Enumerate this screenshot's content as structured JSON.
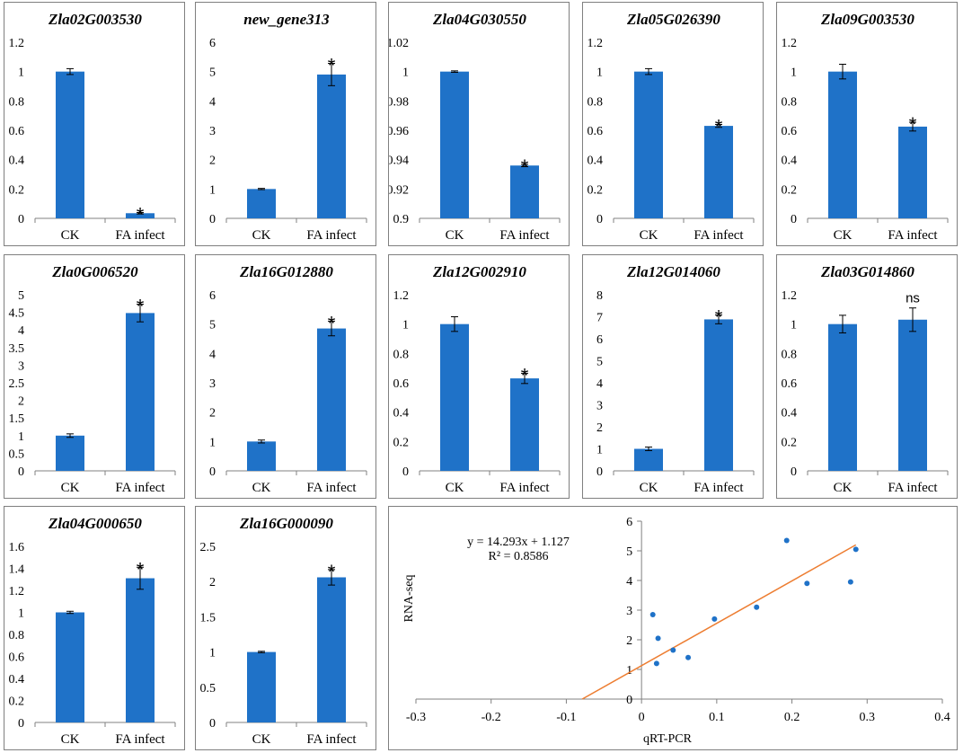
{
  "colors": {
    "bar": "#1F72C8",
    "point": "#1F72C8",
    "fit": "#ED7D31",
    "axis": "#808080",
    "grid": "#d9d9d9"
  },
  "chart_data": [
    {
      "type": "bar",
      "title": "Zla02G003530",
      "categories": [
        "CK",
        "FA infect"
      ],
      "values": [
        1.0,
        0.035
      ],
      "errors": [
        0.02,
        0.005
      ],
      "ylim": [
        0,
        1.2
      ],
      "yticks": [
        "0",
        "0.2",
        "0.4",
        "0.6",
        "0.8",
        "1",
        "1.2"
      ],
      "annotations": [
        "",
        "*"
      ]
    },
    {
      "type": "bar",
      "title": "new_gene313",
      "categories": [
        "CK",
        "FA infect"
      ],
      "values": [
        1.0,
        4.9
      ],
      "errors": [
        0.02,
        0.38
      ],
      "ylim": [
        0,
        6
      ],
      "yticks": [
        "0",
        "1",
        "2",
        "3",
        "4",
        "5",
        "6"
      ],
      "annotations": [
        "",
        "*"
      ]
    },
    {
      "type": "bar",
      "title": "Zla04G030550",
      "categories": [
        "CK",
        "FA infect"
      ],
      "values": [
        1.0,
        0.936
      ],
      "errors": [
        0.0005,
        0.0008
      ],
      "ylim": [
        0.9,
        1.02
      ],
      "yticks": [
        "0.9",
        "0.92",
        "0.94",
        "0.96",
        "0.98",
        "1",
        "1.02"
      ],
      "annotations": [
        "",
        "*"
      ]
    },
    {
      "type": "bar",
      "title": "Zla05G026390",
      "categories": [
        "CK",
        "FA infect"
      ],
      "values": [
        1.0,
        0.63
      ],
      "errors": [
        0.02,
        0.01
      ],
      "ylim": [
        0,
        1.2
      ],
      "yticks": [
        "0",
        "0.2",
        "0.4",
        "0.6",
        "0.8",
        "1",
        "1.2"
      ],
      "annotations": [
        "",
        "*"
      ]
    },
    {
      "type": "bar",
      "title": "Zla09G003530",
      "categories": [
        "CK",
        "FA infect"
      ],
      "values": [
        1.0,
        0.625
      ],
      "errors": [
        0.05,
        0.03
      ],
      "ylim": [
        0,
        1.2
      ],
      "yticks": [
        "0",
        "0.2",
        "0.4",
        "0.6",
        "0.8",
        "1",
        "1.2"
      ],
      "annotations": [
        "",
        "*"
      ]
    },
    {
      "type": "bar",
      "title": "Zla0G006520",
      "categories": [
        "CK",
        "FA infect"
      ],
      "values": [
        1.0,
        4.48
      ],
      "errors": [
        0.05,
        0.25
      ],
      "ylim": [
        0,
        5
      ],
      "yticks": [
        "0",
        "0.5",
        "1",
        "1.5",
        "2",
        "2.5",
        "3",
        "3.5",
        "4",
        "4.5",
        "5"
      ],
      "annotations": [
        "",
        "*"
      ]
    },
    {
      "type": "bar",
      "title": "Zla16G012880",
      "categories": [
        "CK",
        "FA infect"
      ],
      "values": [
        1.0,
        4.85
      ],
      "errors": [
        0.05,
        0.25
      ],
      "ylim": [
        0,
        6
      ],
      "yticks": [
        "0",
        "1",
        "2",
        "3",
        "4",
        "5",
        "6"
      ],
      "annotations": [
        "",
        "*"
      ]
    },
    {
      "type": "bar",
      "title": "Zla12G002910",
      "categories": [
        "CK",
        "FA infect"
      ],
      "values": [
        1.0,
        0.63
      ],
      "errors": [
        0.05,
        0.035
      ],
      "ylim": [
        0,
        1.2
      ],
      "yticks": [
        "0",
        "0.2",
        "0.4",
        "0.6",
        "0.8",
        "1",
        "1.2"
      ],
      "annotations": [
        "",
        "*"
      ]
    },
    {
      "type": "bar",
      "title": "Zla12G014060",
      "categories": [
        "CK",
        "FA infect"
      ],
      "values": [
        1.0,
        6.88
      ],
      "errors": [
        0.08,
        0.2
      ],
      "ylim": [
        0,
        8
      ],
      "yticks": [
        "0",
        "1",
        "2",
        "3",
        "4",
        "5",
        "6",
        "7",
        "8"
      ],
      "annotations": [
        "",
        "*"
      ]
    },
    {
      "type": "bar",
      "title": "Zla03G014860",
      "categories": [
        "CK",
        "FA infect"
      ],
      "values": [
        1.0,
        1.03
      ],
      "errors": [
        0.06,
        0.08
      ],
      "ylim": [
        0,
        1.2
      ],
      "yticks": [
        "0",
        "0.2",
        "0.4",
        "0.6",
        "0.8",
        "1",
        "1.2"
      ],
      "annotations": [
        "",
        "ns"
      ]
    },
    {
      "type": "bar",
      "title": "Zla04G000650",
      "categories": [
        "CK",
        "FA infect"
      ],
      "values": [
        1.0,
        1.31
      ],
      "errors": [
        0.01,
        0.1
      ],
      "ylim": [
        0,
        1.6
      ],
      "yticks": [
        "0",
        "0.2",
        "0.4",
        "0.6",
        "0.8",
        "1",
        "1.2",
        "1.4",
        "1.6"
      ],
      "annotations": [
        "",
        "*"
      ]
    },
    {
      "type": "bar",
      "title": "Zla16G000090",
      "categories": [
        "CK",
        "FA infect"
      ],
      "values": [
        1.0,
        2.06
      ],
      "errors": [
        0.01,
        0.11
      ],
      "ylim": [
        0,
        2.5
      ],
      "yticks": [
        "0",
        "0.5",
        "1",
        "1.5",
        "2",
        "2.5"
      ],
      "annotations": [
        "",
        "*"
      ]
    },
    {
      "type": "scatter",
      "title": "",
      "xlabel": "qRT-PCR",
      "ylabel": "RNA-seq",
      "xlim": [
        -0.3,
        0.4
      ],
      "ylim": [
        0,
        6
      ],
      "xticks": [
        "-0.3",
        "-0.2",
        "-0.1",
        "0",
        "0.1",
        "0.2",
        "0.3",
        "0.4"
      ],
      "yticks": [
        "0",
        "1",
        "2",
        "3",
        "4",
        "5",
        "6"
      ],
      "x": [
        0.015,
        0.02,
        0.022,
        0.042,
        0.062,
        0.097,
        0.153,
        0.193,
        0.22,
        0.278,
        0.285
      ],
      "y": [
        2.85,
        1.2,
        2.05,
        1.65,
        1.4,
        2.7,
        3.1,
        5.35,
        3.9,
        3.95,
        5.05
      ],
      "fit": {
        "slope": 14.293,
        "intercept": 1.127
      },
      "equation": "y = 14.293x + 1.127",
      "r2": "R² = 0.8586"
    }
  ]
}
